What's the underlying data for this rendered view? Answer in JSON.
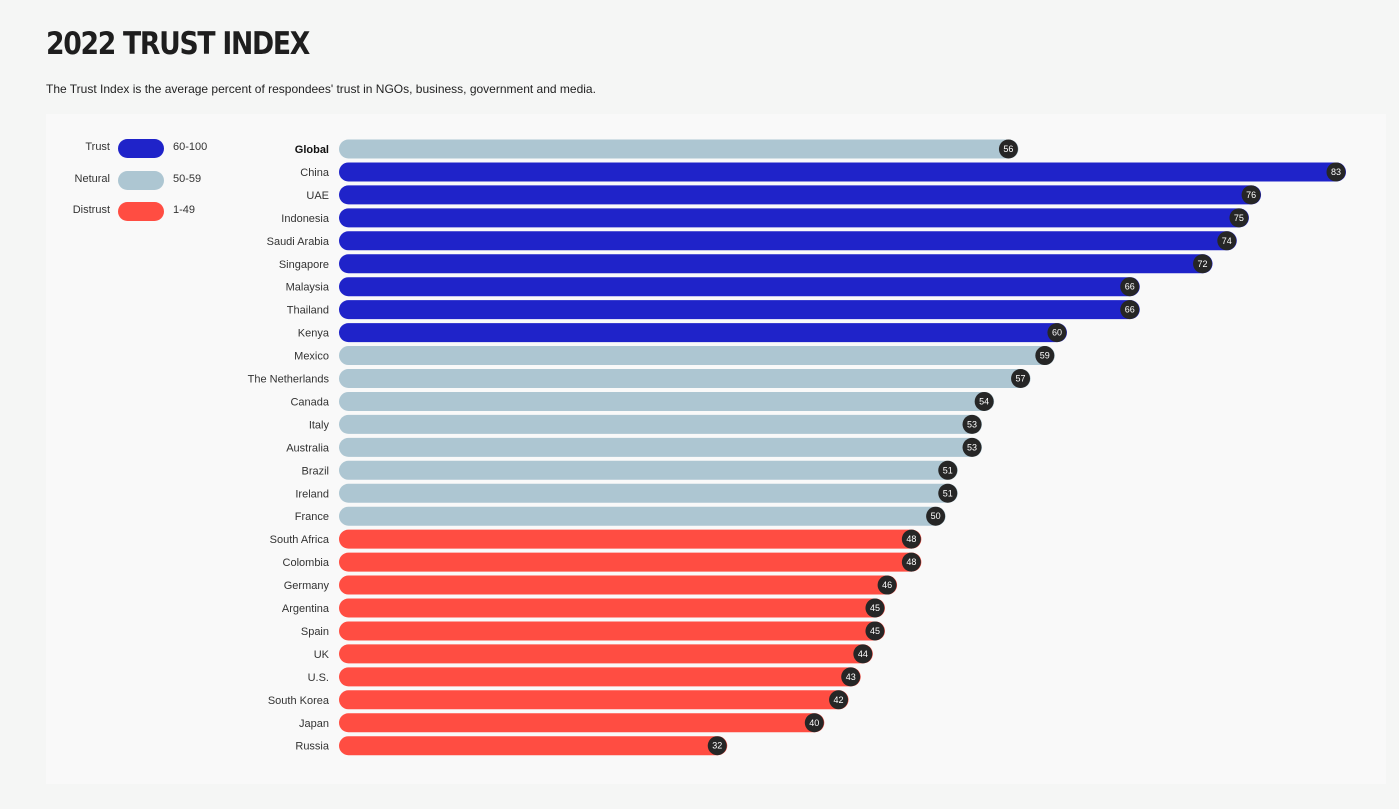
{
  "header": {
    "title": "2022 TRUST INDEX",
    "subtitle": "The Trust Index is the average percent of respondees' trust in NGOs, business, government and media."
  },
  "legend": [
    {
      "label": "Trust",
      "range": "60-100",
      "color": "#1f23c9"
    },
    {
      "label": "Netural",
      "range": "50-59",
      "color": "#adc6d2"
    },
    {
      "label": "Distrust",
      "range": "1-49",
      "color": "#ff4d42"
    }
  ],
  "colors": {
    "trust": "#1f23c9",
    "neutral": "#adc6d2",
    "distrust": "#ff4d42",
    "badge": "#262626"
  },
  "chart_data": {
    "type": "bar",
    "orientation": "horizontal",
    "categories": [
      "Global",
      "China",
      "UAE",
      "Indonesia",
      "Saudi Arabia",
      "Singapore",
      "Malaysia",
      "Thailand",
      "Kenya",
      "Mexico",
      "The Netherlands",
      "Canada",
      "Italy",
      "Australia",
      "Brazil",
      "Ireland",
      "France",
      "South Africa",
      "Colombia",
      "Germany",
      "Argentina",
      "Spain",
      "UK",
      "U.S.",
      "South Korea",
      "Japan",
      "Russia"
    ],
    "values": [
      56,
      83,
      76,
      75,
      74,
      72,
      66,
      66,
      60,
      59,
      57,
      54,
      53,
      53,
      51,
      51,
      50,
      48,
      48,
      46,
      45,
      45,
      44,
      43,
      42,
      40,
      32
    ],
    "bold_categories": [
      "Global"
    ],
    "color_rule": "Trust 60-100, Netural 50-59, Distrust 1-49",
    "data_labels": "value in dark circle at bar end",
    "grid": false,
    "legend_position": "top-left",
    "xlim": [
      0,
      83
    ]
  }
}
